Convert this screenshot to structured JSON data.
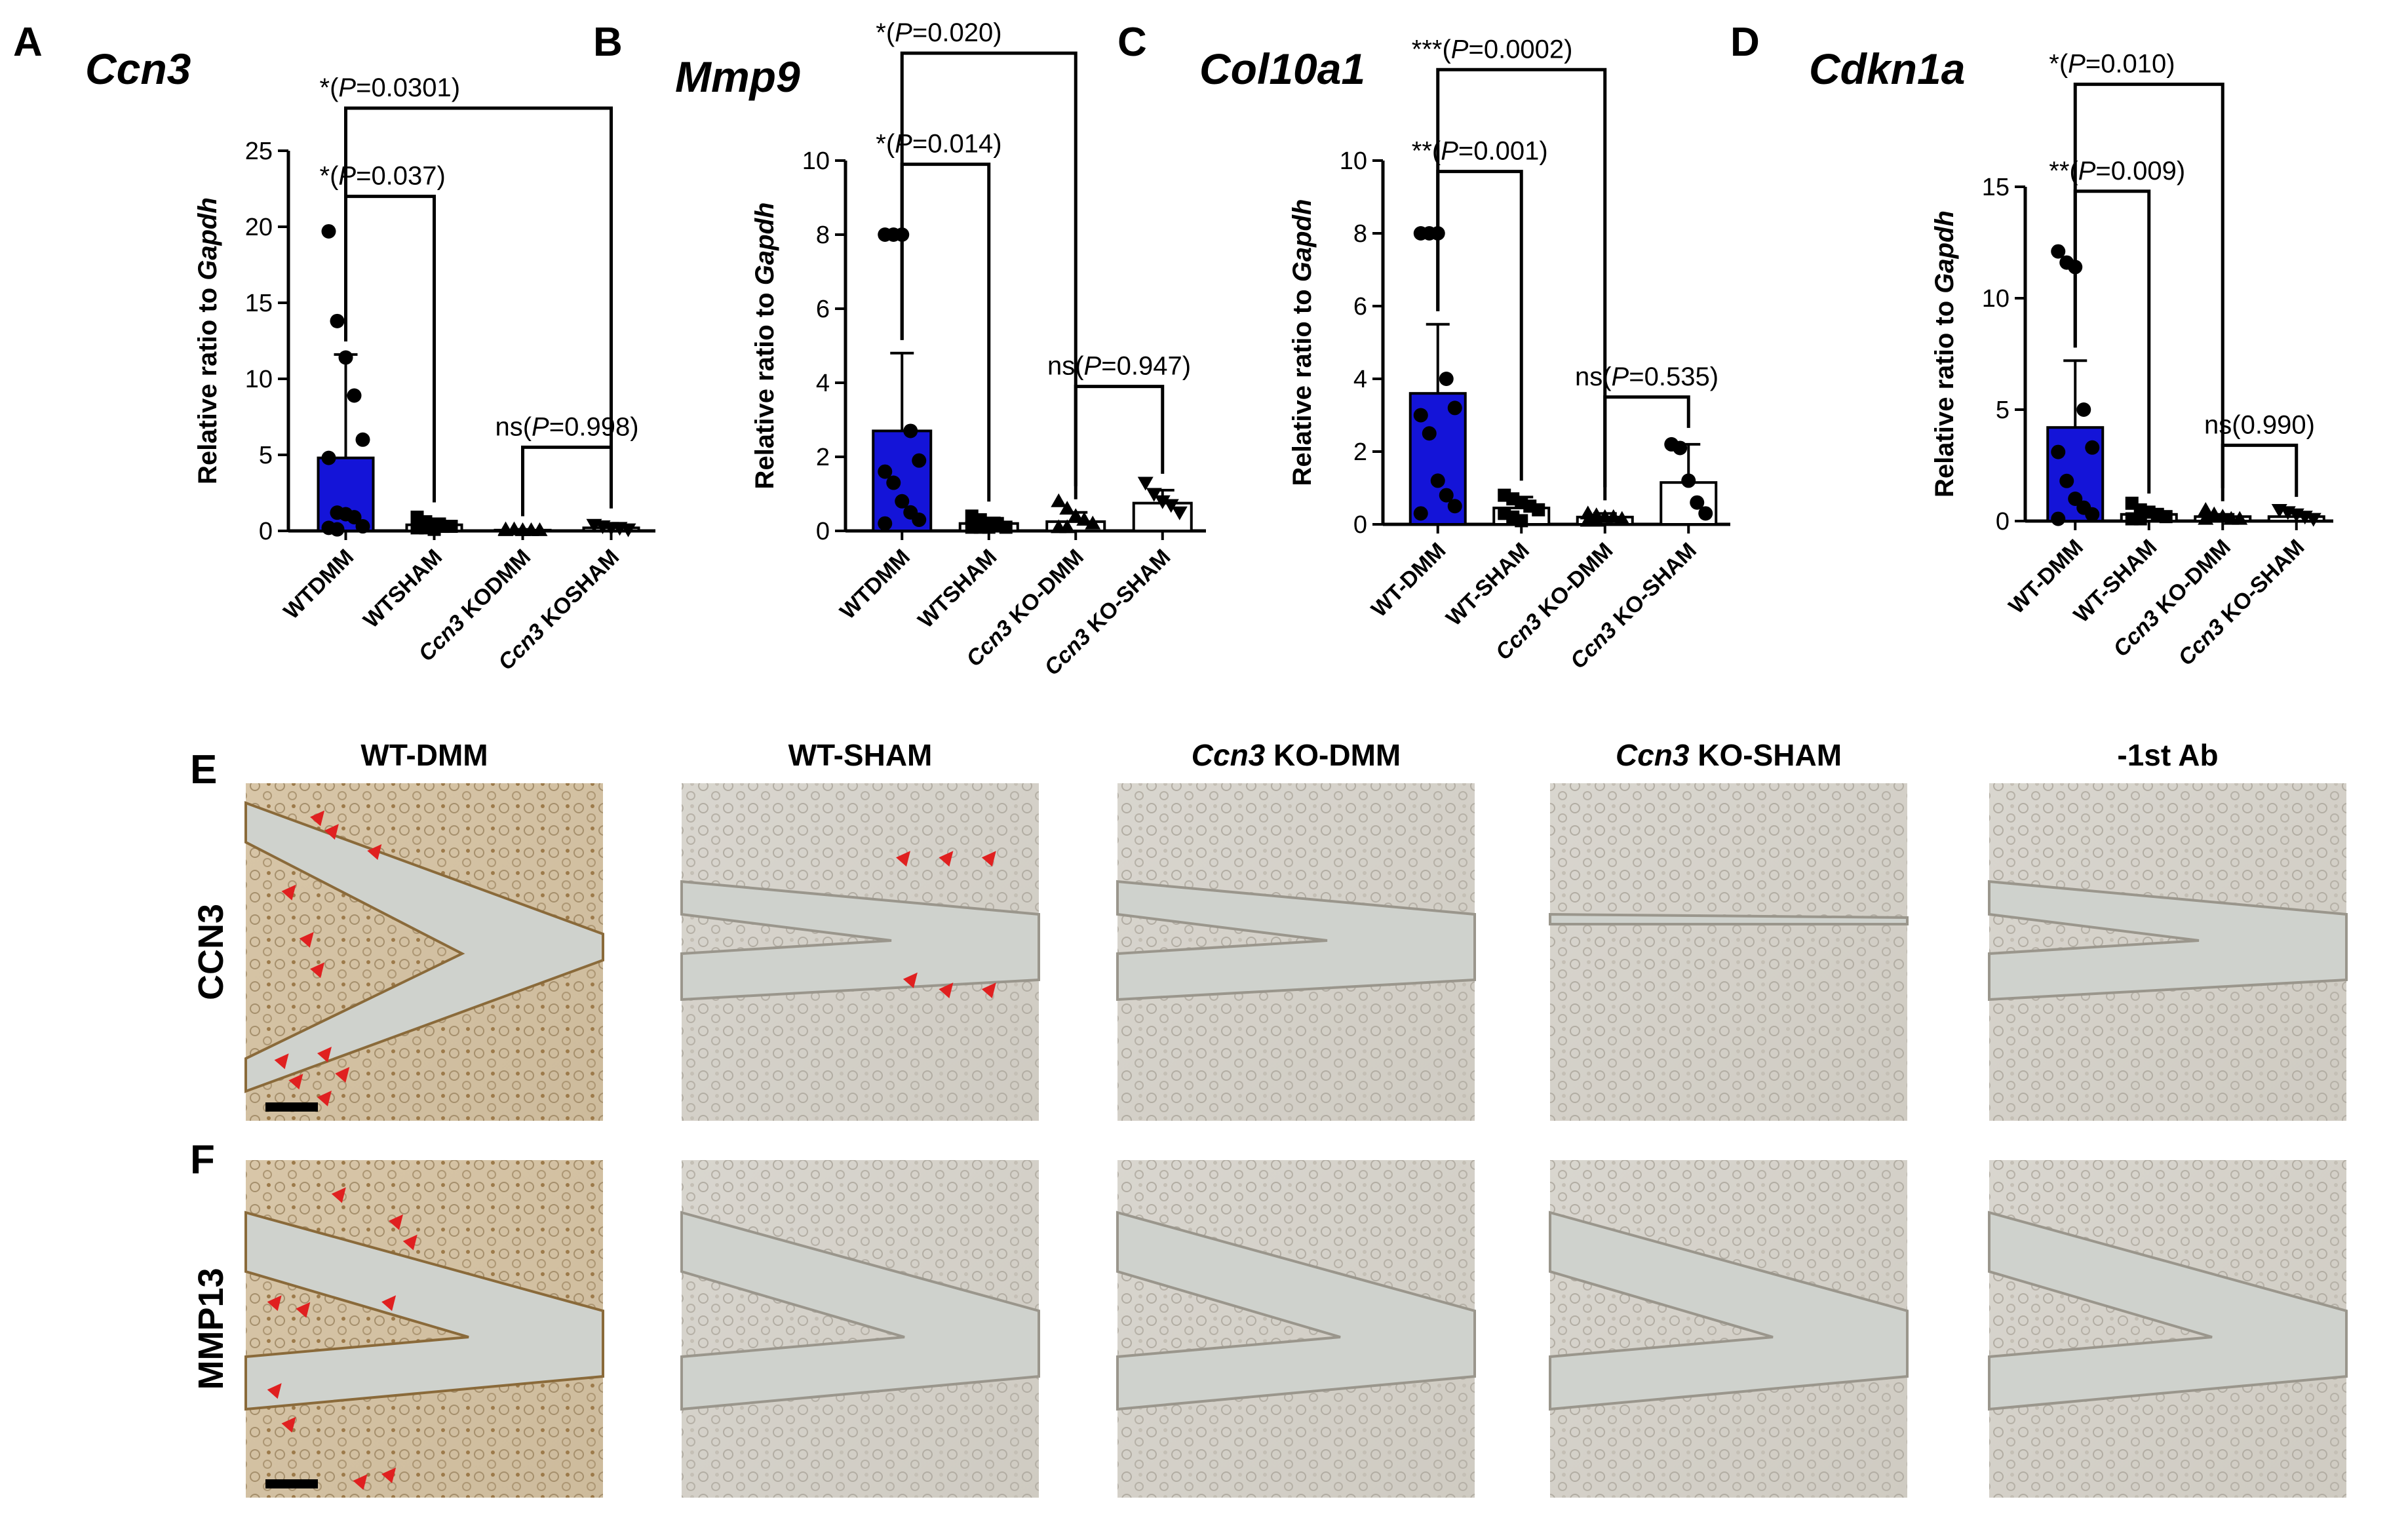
{
  "panel_letters": [
    "A",
    "B",
    "C",
    "D",
    "E",
    "F"
  ],
  "chart_data": [
    {
      "type": "bar",
      "panel": "A",
      "title": "Ccn3",
      "ylabel": "Relative ratio to Gapdh",
      "ylim": [
        0,
        25
      ],
      "yticks": [
        "0",
        "5",
        "10",
        "15",
        "20",
        "25"
      ],
      "categories": [
        "WTDMM",
        "WTSHAM",
        "Ccn3 KODMM",
        "Ccn3 KOSHAM"
      ],
      "values": [
        4.8,
        0.4,
        0.05,
        0.2
      ],
      "error_upper": [
        11.6,
        0.8,
        0.1,
        0.4
      ],
      "points": [
        [
          19.7,
          13.8,
          11.4,
          8.9,
          6.0,
          4.8,
          1.2,
          1.1,
          0.9,
          0.3,
          0.2,
          0.1
        ],
        [
          0.9,
          0.6,
          0.4,
          0.3,
          0.3,
          0.2,
          0.2,
          0.1
        ],
        [
          0.1,
          0.1,
          0.05,
          0.05,
          0.05,
          0.05
        ],
        [
          0.4,
          0.3,
          0.2,
          0.2,
          0.1
        ]
      ],
      "markers": [
        "circle",
        "square",
        "triangle",
        "triangle-down"
      ],
      "fills": [
        "#1414d8",
        "#ffffff",
        "#ffffff",
        "#ffffff"
      ],
      "comparisons": [
        {
          "from": 0,
          "to": 3,
          "label": "*(P=0.0301)",
          "level": 27.8
        },
        {
          "from": 0,
          "to": 1,
          "label": "*(P=0.037)",
          "level": 22.0
        },
        {
          "from": 2,
          "to": 3,
          "label": "ns(P=0.998)",
          "level": 5.5
        }
      ]
    },
    {
      "type": "bar",
      "panel": "B",
      "title": "Mmp9",
      "ylabel": "Relative ratio to Gapdh",
      "ylim": [
        0,
        10
      ],
      "yticks": [
        "0",
        "2",
        "4",
        "6",
        "8",
        "10"
      ],
      "categories": [
        "WTDMM",
        "WTSHAM",
        "Ccn3 KO-DMM",
        "Ccn3 KO-SHAM"
      ],
      "values": [
        2.7,
        0.2,
        0.25,
        0.75
      ],
      "error_upper": [
        4.8,
        0.35,
        0.5,
        1.1
      ],
      "points": [
        [
          8.0,
          8.0,
          8.0,
          2.7,
          1.9,
          1.6,
          1.3,
          0.8,
          0.5,
          0.3,
          0.2
        ],
        [
          0.4,
          0.3,
          0.2,
          0.2,
          0.1,
          0.1,
          0.1,
          0.1
        ],
        [
          0.8,
          0.6,
          0.4,
          0.3,
          0.2,
          0.1,
          0.1
        ],
        [
          1.3,
          1.0,
          0.8,
          0.7,
          0.5
        ]
      ],
      "markers": [
        "circle",
        "square",
        "triangle",
        "triangle-down"
      ],
      "fills": [
        "#1414d8",
        "#ffffff",
        "#ffffff",
        "#ffffff"
      ],
      "comparisons": [
        {
          "from": 0,
          "to": 2,
          "label": "*(P=0.020)",
          "level": 12.9
        },
        {
          "from": 0,
          "to": 1,
          "label": "*(P=0.014)",
          "level": 9.9
        },
        {
          "from": 2,
          "to": 3,
          "label": "ns(P=0.947)",
          "level": 3.9
        }
      ]
    },
    {
      "type": "bar",
      "panel": "C",
      "title": "Col10a1",
      "ylabel": "Relative ratio to Gapdh",
      "ylim": [
        0,
        10
      ],
      "yticks": [
        "0",
        "2",
        "4",
        "6",
        "8",
        "10"
      ],
      "categories": [
        "WT-DMM",
        "WT-SHAM",
        "Ccn3 KO-DMM",
        "Ccn3 KO-SHAM"
      ],
      "values": [
        3.6,
        0.45,
        0.2,
        1.15
      ],
      "error_upper": [
        5.5,
        0.75,
        0.3,
        2.2
      ],
      "points": [
        [
          8.0,
          8.0,
          8.0,
          4.0,
          3.2,
          3.0,
          2.5,
          1.2,
          0.8,
          0.5,
          0.3
        ],
        [
          0.8,
          0.7,
          0.6,
          0.5,
          0.4,
          0.3,
          0.2,
          0.1
        ],
        [
          0.3,
          0.25,
          0.2,
          0.2,
          0.15,
          0.1,
          0.1
        ],
        [
          2.2,
          2.1,
          1.2,
          0.6,
          0.3
        ]
      ],
      "markers": [
        "circle",
        "square",
        "triangle",
        "circle"
      ],
      "fills": [
        "#1414d8",
        "#ffffff",
        "#ffffff",
        "#ffffff"
      ],
      "comparisons": [
        {
          "from": 0,
          "to": 2,
          "label": "***(P=0.0002)",
          "level": 12.5
        },
        {
          "from": 0,
          "to": 1,
          "label": "**(P=0.001)",
          "level": 9.7
        },
        {
          "from": 2,
          "to": 3,
          "label": "ns(P=0.535)",
          "level": 3.5
        }
      ]
    },
    {
      "type": "bar",
      "panel": "D",
      "title": "Cdkn1a",
      "ylabel": "Relative ratio to Gapdh",
      "ylim": [
        0,
        15
      ],
      "yticks": [
        "0",
        "5",
        "10",
        "15"
      ],
      "categories": [
        "WT-DMM",
        "WT-SHAM",
        "Ccn3 KO-DMM",
        "Ccn3 KO-SHAM"
      ],
      "values": [
        4.2,
        0.3,
        0.2,
        0.2
      ],
      "error_upper": [
        7.2,
        0.5,
        0.3,
        0.35
      ],
      "points": [
        [
          12.1,
          11.6,
          11.4,
          5.0,
          3.3,
          3.1,
          1.8,
          1.0,
          0.6,
          0.3,
          0.1
        ],
        [
          0.8,
          0.5,
          0.4,
          0.3,
          0.2,
          0.1,
          0.1
        ],
        [
          0.5,
          0.3,
          0.2,
          0.1,
          0.1,
          0.1
        ],
        [
          0.5,
          0.4,
          0.3,
          0.2,
          0.1
        ]
      ],
      "markers": [
        "circle",
        "square",
        "triangle",
        "triangle-down"
      ],
      "fills": [
        "#1414d8",
        "#ffffff",
        "#ffffff",
        "#ffffff"
      ],
      "comparisons": [
        {
          "from": 0,
          "to": 2,
          "label": "*(P=0.010)",
          "level": 19.6
        },
        {
          "from": 0,
          "to": 1,
          "label": "**(P=0.009)",
          "level": 14.8
        },
        {
          "from": 2,
          "to": 3,
          "label": "ns(0.990)",
          "level": 3.4
        }
      ]
    }
  ],
  "images": {
    "columns": [
      "WT-DMM",
      "WT-SHAM",
      "Ccn3 KO-DMM",
      "Ccn3 KO-SHAM",
      "-1st Ab"
    ],
    "rows": [
      "CCN3",
      "MMP13"
    ],
    "arrow_color": "#e02020"
  }
}
